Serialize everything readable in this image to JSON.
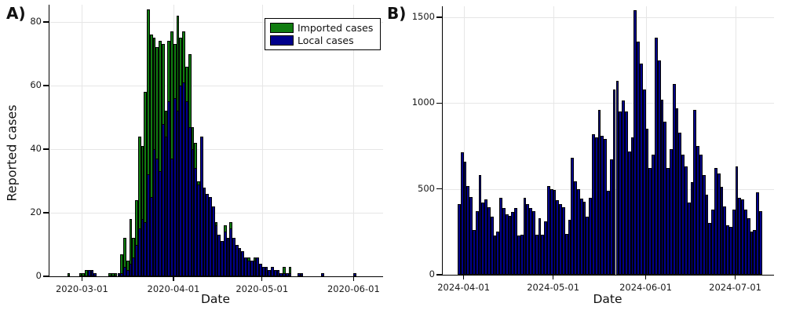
{
  "figure": {
    "background": "#ffffff"
  },
  "panels": {
    "a": {
      "corner_label": "A)"
    },
    "b": {
      "corner_label": "B)"
    }
  },
  "chart_data": [
    {
      "panel": "A",
      "type": "bar",
      "bar_mode": "overlay",
      "title": "",
      "xlabel": "Date",
      "ylabel": "Reported cases",
      "x_start_date": "2020-02-25",
      "x_frequency": "daily",
      "xlim": [
        "2020-02-19",
        "2020-06-11"
      ],
      "ylim": [
        0,
        85
      ],
      "yticks": [
        0,
        20,
        40,
        60,
        80
      ],
      "xtick_labels": [
        "2020-03-01",
        "2020-04-01",
        "2020-05-01",
        "2020-06-01"
      ],
      "grid": true,
      "legend_position": "top-right",
      "series": [
        {
          "name": "Imported cases",
          "color": "#107c10",
          "values": [
            1,
            0,
            0,
            0,
            1,
            1,
            2,
            1,
            1,
            0,
            0,
            0,
            0,
            0,
            1,
            1,
            1,
            1,
            7,
            12,
            5,
            18,
            12,
            24,
            44,
            41,
            58,
            84,
            76,
            75,
            72,
            74,
            73,
            52,
            74,
            77,
            73,
            82,
            75,
            77,
            66,
            70,
            47,
            42,
            30,
            27,
            28,
            26,
            24,
            20,
            17,
            13,
            11,
            16,
            12,
            17,
            9,
            10,
            8,
            4,
            5,
            6,
            5,
            6,
            5,
            4,
            3,
            1,
            0,
            2,
            0,
            0,
            1,
            3,
            0,
            3,
            0,
            0,
            0,
            0,
            0,
            0,
            0,
            0,
            0,
            0,
            0,
            0,
            0,
            0,
            0,
            0,
            0,
            0,
            0,
            0,
            0,
            0
          ]
        },
        {
          "name": "Local cases",
          "color": "#00008b",
          "values": [
            0,
            0,
            0,
            0,
            0,
            0,
            0,
            2,
            2,
            1,
            0,
            0,
            0,
            0,
            0,
            0,
            0,
            1,
            1,
            3,
            2,
            4,
            6,
            10,
            15,
            18,
            17,
            32,
            25,
            40,
            37,
            33,
            48,
            44,
            55,
            37,
            56,
            52,
            60,
            61,
            55,
            47,
            40,
            34,
            29,
            44,
            28,
            26,
            25,
            22,
            16,
            13,
            11,
            14,
            12,
            15,
            12,
            10,
            9,
            8,
            6,
            5,
            5,
            5,
            6,
            4,
            3,
            3,
            2,
            3,
            2,
            2,
            1,
            1,
            1,
            1,
            0,
            0,
            1,
            1,
            0,
            0,
            0,
            0,
            0,
            0,
            1,
            0,
            0,
            0,
            0,
            0,
            0,
            0,
            0,
            0,
            0,
            1
          ]
        }
      ]
    },
    {
      "panel": "B",
      "type": "bar",
      "bar_mode": "single",
      "title": "",
      "xlabel": "Date",
      "ylabel": "",
      "x_start_date": "2024-03-30",
      "x_frequency": "daily",
      "xlim": [
        "2024-03-25",
        "2024-07-14"
      ],
      "ylim": [
        0,
        1560
      ],
      "yticks": [
        0,
        500,
        1000,
        1500
      ],
      "xtick_labels": [
        "2024-04-01",
        "2024-05-01",
        "2024-06-01",
        "2024-07-01"
      ],
      "grid": true,
      "legend_position": "none",
      "series": [
        {
          "name": "Reported cases",
          "color": "#00008b",
          "values": [
            410,
            715,
            660,
            515,
            455,
            260,
            370,
            580,
            420,
            440,
            395,
            340,
            230,
            250,
            450,
            390,
            350,
            345,
            365,
            390,
            230,
            235,
            450,
            410,
            390,
            370,
            235,
            330,
            235,
            310,
            515,
            500,
            495,
            435,
            410,
            395,
            240,
            320,
            680,
            545,
            500,
            445,
            425,
            340,
            450,
            820,
            800,
            960,
            810,
            790,
            490,
            670,
            1080,
            1130,
            950,
            1015,
            950,
            720,
            800,
            1540,
            1360,
            1230,
            1080,
            850,
            620,
            700,
            1380,
            1250,
            1020,
            890,
            620,
            730,
            1110,
            970,
            830,
            700,
            630,
            420,
            540,
            960,
            750,
            700,
            580,
            465,
            300,
            380,
            620,
            590,
            510,
            400,
            290,
            280,
            380,
            630,
            450,
            440,
            380,
            330,
            250,
            260,
            480,
            370
          ]
        }
      ]
    }
  ]
}
